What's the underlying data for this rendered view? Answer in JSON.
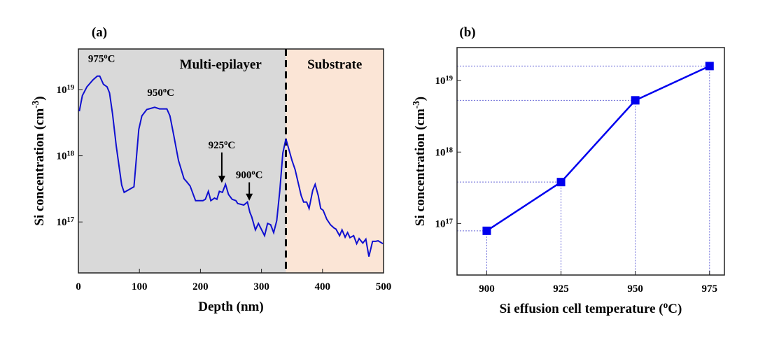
{
  "chart_data": [
    {
      "type": "line",
      "panel_label": "(a)",
      "xlabel": "Depth (nm)",
      "ylabel": {
        "text": "Si concentration (cm",
        "sup": "-3",
        "tail": ")"
      },
      "xlim": [
        0,
        500
      ],
      "ylim": [
        1.7e+16,
        4.1e+19
      ],
      "yscale": "log",
      "xticks": [
        "0",
        "100",
        "200",
        "300",
        "400",
        "500"
      ],
      "yticks": [
        {
          "value": 1e+17,
          "base": "10",
          "exp": "17"
        },
        {
          "value": 1e+18,
          "base": "10",
          "exp": "18"
        },
        {
          "value": 1e+19,
          "base": "10",
          "exp": "19"
        }
      ],
      "grid": false,
      "regions": [
        {
          "label": "Multi-epilayer",
          "from": 0,
          "to": 340,
          "color": "#d9d9d9"
        },
        {
          "label": "Substrate",
          "from": 340,
          "to": 500,
          "color": "#fbe5d6"
        }
      ],
      "boundary_depth": 340,
      "line_color": "#1010d0",
      "annotations": [
        {
          "num": "975",
          "sup": "o",
          "unit": "C",
          "x": 38,
          "y": 2.6e+19,
          "arrow": false
        },
        {
          "num": "950",
          "sup": "o",
          "unit": "C",
          "x": 135,
          "y": 8e+18,
          "arrow": false
        },
        {
          "num": "925",
          "sup": "o",
          "unit": "C",
          "x": 235,
          "y": 1.3e+18,
          "arrow": true,
          "arrow_to": 3.9e+17
        },
        {
          "num": "900",
          "sup": "o",
          "unit": "C",
          "x": 280,
          "y": 4.6e+17,
          "arrow": true,
          "arrow_to": 2.1e+17
        }
      ],
      "x": [
        1.5,
        6.5,
        14,
        24,
        31,
        35,
        41,
        47,
        51,
        56,
        62,
        67,
        71,
        75,
        91,
        99,
        104,
        112,
        125,
        133,
        145,
        150,
        156,
        164,
        173,
        177,
        183,
        192,
        198,
        204,
        208,
        213,
        217,
        223,
        227,
        231,
        236,
        241,
        246,
        252,
        258,
        261,
        271,
        277,
        281,
        284,
        290,
        295,
        305,
        310,
        315,
        320,
        325,
        330,
        335,
        340,
        350,
        355,
        365,
        369,
        374,
        378,
        384,
        388,
        393,
        397,
        401,
        407,
        413,
        419,
        422,
        428,
        432,
        437,
        441,
        445,
        451,
        456,
        460,
        466,
        471,
        476,
        482,
        487,
        491,
        499
      ],
      "y": [
        4.7e+18,
        8.1e+18,
        1.1e+19,
        1.4e+19,
        1.6e+19,
        1.6e+19,
        1.2e+19,
        1.1e+19,
        8.9e+18,
        4.3e+18,
        1.4e+18,
        6.6e+17,
        3.6e+17,
        2.8e+17,
        3.4e+17,
        2.5e+18,
        4e+18,
        5e+18,
        5.4e+18,
        5.1e+18,
        5.1e+18,
        4e+18,
        2.1e+18,
        8.5e+17,
        4.5e+17,
        4.1e+17,
        3.5e+17,
        2.1e+17,
        2.1e+17,
        2.1e+17,
        2.2e+17,
        2.9e+17,
        2.1e+17,
        2.3e+17,
        2.2e+17,
        2.9e+17,
        2.8e+17,
        3.7e+17,
        2.6e+17,
        2.2e+17,
        2.1e+17,
        1.9e+17,
        1.8e+17,
        2e+17,
        1.4e+17,
        1.2e+17,
        7.6e+16,
        9.5e+16,
        6.2e+16,
        9.5e+16,
        9.1e+16,
        6.9e+16,
        1.05e+17,
        3e+17,
        1.1e+18,
        1.8e+18,
        8.5e+17,
        6.2e+17,
        2.5e+17,
        2e+17,
        2e+17,
        1.6e+17,
        3e+17,
        3.7e+17,
        2.5e+17,
        1.6e+17,
        1.5e+17,
        1.1e+17,
        9.1e+16,
        8.1e+16,
        7.8e+16,
        6.2e+16,
        7.6e+16,
        5.9e+16,
        6.9e+16,
        5.8e+16,
        6.2e+16,
        4.7e+16,
        5.6e+16,
        4.8e+16,
        5.5e+16,
        3e+16,
        5.1e+16,
        5.1e+16,
        5.2e+16,
        4.7e+16
      ]
    },
    {
      "type": "line",
      "panel_label": "(b)",
      "xlabel": {
        "text": "Si effusion cell temperature (",
        "sup": "o",
        "tail": "C)"
      },
      "ylabel": {
        "text": "Si concentration (cm",
        "sup": "-3",
        "tail": ")"
      },
      "xlim": [
        890,
        980
      ],
      "ylim": [
        1.9e+16,
        2.9e+19
      ],
      "yscale": "log",
      "xticks": [
        "900",
        "925",
        "950",
        "975"
      ],
      "yticks": [
        {
          "value": 1e+17,
          "base": "10",
          "exp": "17"
        },
        {
          "value": 1e+18,
          "base": "10",
          "exp": "18"
        },
        {
          "value": 1e+19,
          "base": "10",
          "exp": "19"
        }
      ],
      "grid": false,
      "marker": "square",
      "line_color": "#0000ee",
      "guide_color": "#6a6ad8",
      "x": [
        900,
        925,
        950,
        975
      ],
      "y": [
        7.9e+16,
        3.8e+17,
        5.3e+18,
        1.6e+19
      ]
    }
  ]
}
